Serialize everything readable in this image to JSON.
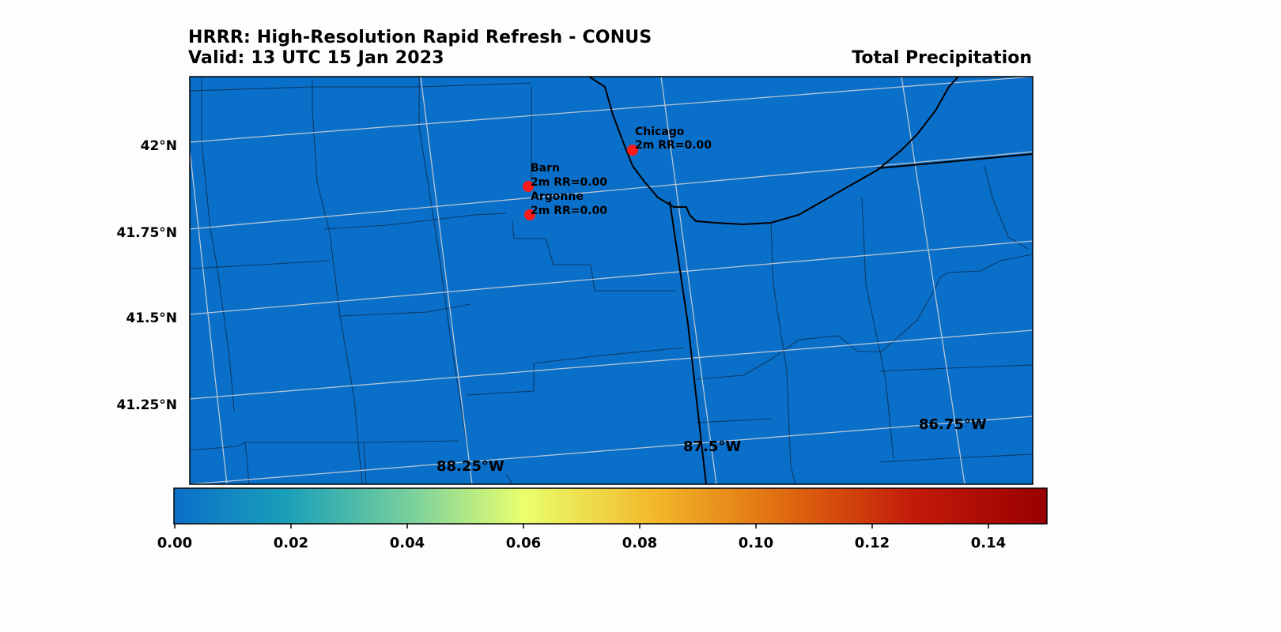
{
  "header": {
    "model_title": "HRRR: High-Resolution Rapid Refresh - CONUS",
    "valid_time": "Valid: 13 UTC 15 Jan 2023",
    "field_name": "Total Precipitation"
  },
  "map": {
    "background_color": "#0a6fc9",
    "lat_labels": [
      "42°N",
      "41.75°N",
      "41.5°N",
      "41.25°N"
    ],
    "lon_labels": [
      "88.25°W",
      "87.5°W",
      "86.75°W"
    ],
    "stations": [
      {
        "name": "Chicago",
        "value": "2m RR=0.00"
      },
      {
        "name": "Barn",
        "value": "2m RR=0.00"
      },
      {
        "name": "Argonne",
        "value": "2m RR=0.00"
      }
    ],
    "station_marker_color": "#ff1a1a"
  },
  "colorbar": {
    "tick_labels": [
      "0.00",
      "0.02",
      "0.04",
      "0.06",
      "0.08",
      "0.10",
      "0.12",
      "0.14"
    ],
    "colors": [
      "#0a6fc9",
      "#1aa0b8",
      "#7fd39a",
      "#eaff6e",
      "#f2b82a",
      "#e06a0f",
      "#c21a0a",
      "#990000"
    ]
  }
}
